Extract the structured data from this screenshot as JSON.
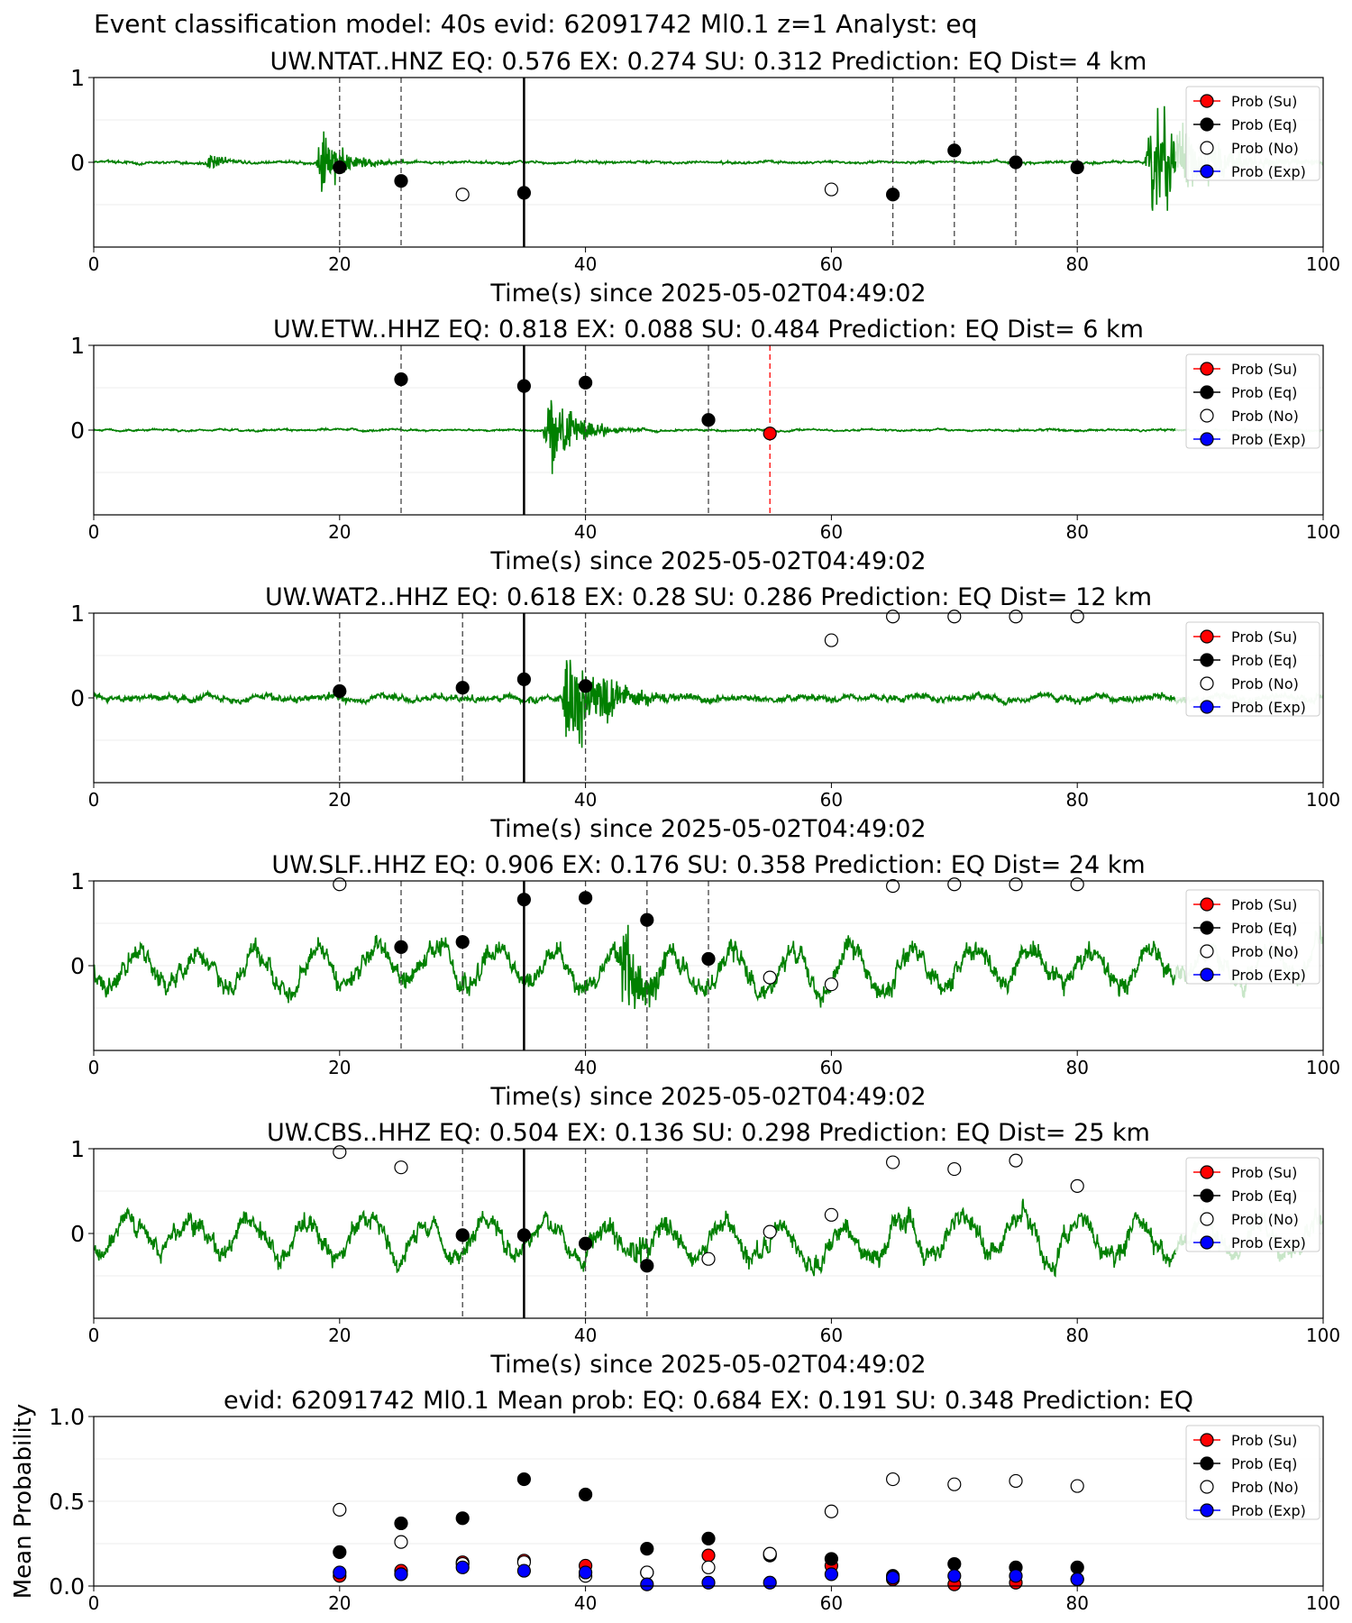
{
  "suptitle": "Event classification model: 40s evid: 62091742 Ml0.1 z=1 Analyst: eq",
  "legend_labels": [
    "Prob (Su)",
    "Prob (Eq)",
    "Prob (No)",
    "Prob (Exp)"
  ],
  "colors": {
    "su": "#ff0000",
    "eq": "#000000",
    "no": "#ffffff",
    "exp": "#0000ff",
    "trace": "#008000",
    "trace_fade": "#c8e6c8",
    "pick_line": "#444444",
    "su_line": "#ff0000"
  },
  "chart_data": [
    {
      "type": "scatter",
      "title": "UW.NTAT..HNZ   EQ: 0.576  EX: 0.274  SU: 0.312   Prediction: EQ    Dist= 4 km",
      "xlabel": "Time(s) since 2025-05-02T04:49:02",
      "xlim": [
        0,
        100
      ],
      "ylim": [
        -1,
        1
      ],
      "xticks": [
        "0",
        "20",
        "40",
        "60",
        "80",
        "100"
      ],
      "yticks": [
        "1",
        "0"
      ],
      "trace": {
        "noise": 0.04,
        "events": [
          {
            "t": 18.5,
            "amp": 0.45,
            "dur": 2
          },
          {
            "t": 86,
            "amp": 1.0,
            "dur": 4
          },
          {
            "t": 9.5,
            "amp": 0.12,
            "dur": 1.5
          }
        ]
      },
      "signal_arrival": 35,
      "picks": [
        {
          "x": 20,
          "cls": "eq",
          "p": 0.47
        },
        {
          "x": 25,
          "cls": "eq",
          "p": 0.39
        },
        {
          "x": 30,
          "cls": "no",
          "p": 0.31
        },
        {
          "x": 35,
          "cls": "eq",
          "p": 0.32
        },
        {
          "x": 60,
          "cls": "no",
          "p": 0.34
        },
        {
          "x": 65,
          "cls": "eq",
          "p": 0.31
        },
        {
          "x": 70,
          "cls": "eq",
          "p": 0.57
        },
        {
          "x": 75,
          "cls": "eq",
          "p": 0.5
        },
        {
          "x": 80,
          "cls": "eq",
          "p": 0.47
        }
      ]
    },
    {
      "type": "scatter",
      "title": "UW.ETW..HHZ   EQ: 0.818  EX: 0.088  SU: 0.484   Prediction: EQ    Dist= 6 km",
      "xlabel": "Time(s) since 2025-05-02T04:49:02",
      "xlim": [
        0,
        100
      ],
      "ylim": [
        -1,
        1
      ],
      "xticks": [
        "0",
        "20",
        "40",
        "60",
        "80",
        "100"
      ],
      "yticks": [
        "1",
        "0"
      ],
      "trace": {
        "noise": 0.03,
        "events": [
          {
            "t": 37,
            "amp": 0.65,
            "dur": 2
          }
        ]
      },
      "signal_arrival": 35,
      "picks": [
        {
          "x": 25,
          "cls": "eq",
          "p": 0.8
        },
        {
          "x": 35,
          "cls": "eq",
          "p": 0.76
        },
        {
          "x": 40,
          "cls": "eq",
          "p": 0.78
        },
        {
          "x": 50,
          "cls": "eq",
          "p": 0.56
        },
        {
          "x": 55,
          "cls": "su",
          "p": 0.48
        }
      ]
    },
    {
      "type": "scatter",
      "title": "UW.WAT2..HHZ   EQ: 0.618  EX: 0.28  SU: 0.286   Prediction: EQ    Dist= 12 km",
      "xlabel": "Time(s) since 2025-05-02T04:49:02",
      "xlim": [
        0,
        100
      ],
      "ylim": [
        -1,
        1
      ],
      "xticks": [
        "0",
        "20",
        "40",
        "60",
        "80",
        "100"
      ],
      "yticks": [
        "1",
        "0"
      ],
      "trace": {
        "noise": 0.12,
        "events": [
          {
            "t": 38.5,
            "amp": 0.85,
            "dur": 3
          }
        ]
      },
      "signal_arrival": 35,
      "picks": [
        {
          "x": 20,
          "cls": "eq",
          "p": 0.54
        },
        {
          "x": 30,
          "cls": "eq",
          "p": 0.56
        },
        {
          "x": 35,
          "cls": "eq",
          "p": 0.61
        },
        {
          "x": 40,
          "cls": "eq",
          "p": 0.57
        },
        {
          "x": 60,
          "cls": "no",
          "p": 0.84
        },
        {
          "x": 65,
          "cls": "no",
          "p": 0.98
        },
        {
          "x": 70,
          "cls": "no",
          "p": 0.98
        },
        {
          "x": 75,
          "cls": "no",
          "p": 0.98
        },
        {
          "x": 80,
          "cls": "no",
          "p": 0.98
        }
      ]
    },
    {
      "type": "scatter",
      "title": "UW.SLF..HHZ   EQ: 0.906  EX: 0.176  SU: 0.358   Prediction: EQ    Dist= 24 km",
      "xlabel": "Time(s) since 2025-05-02T04:49:02",
      "xlim": [
        0,
        100
      ],
      "ylim": [
        -1,
        1
      ],
      "xticks": [
        "0",
        "20",
        "40",
        "60",
        "80",
        "100"
      ],
      "yticks": [
        "1",
        "0"
      ],
      "trace": {
        "noise": 0.35,
        "events": [
          {
            "t": 43,
            "amp": 0.6,
            "dur": 2
          }
        ]
      },
      "signal_arrival": 35,
      "picks": [
        {
          "x": 20,
          "cls": "no",
          "p": 0.98
        },
        {
          "x": 25,
          "cls": "eq",
          "p": 0.61
        },
        {
          "x": 30,
          "cls": "eq",
          "p": 0.64
        },
        {
          "x": 35,
          "cls": "eq",
          "p": 0.89
        },
        {
          "x": 40,
          "cls": "eq",
          "p": 0.9
        },
        {
          "x": 45,
          "cls": "eq",
          "p": 0.77
        },
        {
          "x": 50,
          "cls": "eq",
          "p": 0.54
        },
        {
          "x": 55,
          "cls": "no",
          "p": 0.43
        },
        {
          "x": 60,
          "cls": "no",
          "p": 0.39
        },
        {
          "x": 65,
          "cls": "no",
          "p": 0.97
        },
        {
          "x": 70,
          "cls": "no",
          "p": 0.98
        },
        {
          "x": 75,
          "cls": "no",
          "p": 0.98
        },
        {
          "x": 80,
          "cls": "no",
          "p": 0.98
        }
      ]
    },
    {
      "type": "scatter",
      "title": "UW.CBS..HHZ   EQ: 0.504  EX: 0.136  SU: 0.298   Prediction: EQ    Dist= 25 km",
      "xlabel": "Time(s) since 2025-05-02T04:49:02",
      "xlim": [
        0,
        100
      ],
      "ylim": [
        -1,
        1
      ],
      "xticks": [
        "0",
        "20",
        "40",
        "60",
        "80",
        "100"
      ],
      "yticks": [
        "1",
        "0"
      ],
      "trace": {
        "noise": 0.35,
        "events": [
          {
            "t": 44,
            "amp": 0.3,
            "dur": 2
          }
        ]
      },
      "signal_arrival": 35,
      "picks": [
        {
          "x": 20,
          "cls": "no",
          "p": 0.98
        },
        {
          "x": 25,
          "cls": "no",
          "p": 0.89
        },
        {
          "x": 30,
          "cls": "eq",
          "p": 0.49
        },
        {
          "x": 35,
          "cls": "eq",
          "p": 0.49
        },
        {
          "x": 40,
          "cls": "eq",
          "p": 0.44
        },
        {
          "x": 45,
          "cls": "eq",
          "p": 0.31
        },
        {
          "x": 50,
          "cls": "no",
          "p": 0.35
        },
        {
          "x": 55,
          "cls": "no",
          "p": 0.51
        },
        {
          "x": 60,
          "cls": "no",
          "p": 0.61
        },
        {
          "x": 65,
          "cls": "no",
          "p": 0.92
        },
        {
          "x": 70,
          "cls": "no",
          "p": 0.88
        },
        {
          "x": 75,
          "cls": "no",
          "p": 0.93
        },
        {
          "x": 80,
          "cls": "no",
          "p": 0.78
        }
      ]
    },
    {
      "type": "scatter",
      "title": "evid: 62091742  Ml0.1   Mean prob:   EQ: 0.684  EX: 0.191  SU: 0.348   Prediction: EQ",
      "xlabel": "",
      "ylabel": "Mean Probability",
      "xlim": [
        0,
        100
      ],
      "ylim": [
        0,
        1
      ],
      "xticks": [
        "0",
        "20",
        "40",
        "60",
        "80",
        "100"
      ],
      "yticks": [
        "1.0",
        "0.5",
        "0.0"
      ],
      "x": [
        20,
        25,
        30,
        35,
        40,
        45,
        50,
        55,
        60,
        65,
        70,
        75,
        80
      ],
      "series": [
        {
          "name": "Prob (Su)",
          "key": "su",
          "values": [
            0.06,
            0.09,
            0.14,
            0.15,
            0.12,
            0.08,
            0.18,
            0.19,
            0.12,
            0.04,
            0.01,
            0.02,
            0.04
          ]
        },
        {
          "name": "Prob (Eq)",
          "key": "eq",
          "values": [
            0.2,
            0.37,
            0.4,
            0.63,
            0.54,
            0.22,
            0.28,
            0.18,
            0.16,
            0.06,
            0.13,
            0.11,
            0.11
          ]
        },
        {
          "name": "Prob (No)",
          "key": "no",
          "values": [
            0.45,
            0.26,
            0.13,
            0.14,
            0.06,
            0.08,
            0.11,
            0.19,
            0.44,
            0.63,
            0.6,
            0.62,
            0.59
          ]
        },
        {
          "name": "Prob (Exp)",
          "key": "exp",
          "values": [
            0.08,
            0.07,
            0.11,
            0.09,
            0.08,
            0.01,
            0.02,
            0.02,
            0.07,
            0.05,
            0.06,
            0.06,
            0.04
          ]
        }
      ]
    }
  ]
}
